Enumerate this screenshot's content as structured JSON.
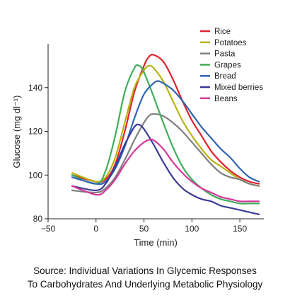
{
  "chart_data": {
    "type": "line",
    "xlabel": "Time (min)",
    "ylabel": "Glucose (mg dl⁻¹)",
    "xlim": [
      -50,
      175
    ],
    "ylim": [
      80,
      160
    ],
    "xticks": [
      -50,
      0,
      50,
      100,
      150
    ],
    "yticks": [
      80,
      100,
      120,
      140
    ],
    "grid": false,
    "legend_position": "top-right",
    "series": [
      {
        "name": "Rice",
        "color": "#e0242d",
        "x": [
          -25,
          0,
          10,
          20,
          30,
          40,
          50,
          55,
          60,
          70,
          80,
          90,
          100,
          110,
          120,
          130,
          140,
          150,
          160,
          170
        ],
        "y": [
          100,
          97,
          98,
          105,
          120,
          138,
          150,
          154,
          155,
          152,
          144,
          134,
          125,
          118,
          111,
          106,
          102,
          99,
          97,
          96
        ]
      },
      {
        "name": "Potatoes",
        "color": "#b5b414",
        "x": [
          -25,
          0,
          10,
          20,
          30,
          40,
          50,
          55,
          60,
          70,
          80,
          90,
          100,
          110,
          120,
          130,
          140,
          150,
          160,
          170
        ],
        "y": [
          101,
          97,
          99,
          108,
          124,
          140,
          148,
          150,
          149,
          143,
          134,
          125,
          118,
          112,
          107,
          104,
          101,
          98,
          96,
          95
        ]
      },
      {
        "name": "Pasta",
        "color": "#7f7f7f",
        "x": [
          -25,
          0,
          10,
          20,
          30,
          40,
          50,
          55,
          60,
          70,
          80,
          90,
          100,
          110,
          120,
          130,
          140,
          150,
          160,
          170
        ],
        "y": [
          93,
          92,
          94,
          99,
          107,
          116,
          124,
          127,
          128,
          127,
          124,
          120,
          115,
          110,
          105,
          101,
          99,
          98,
          96,
          95
        ]
      },
      {
        "name": "Grapes",
        "color": "#3fae5b",
        "x": [
          -25,
          0,
          10,
          20,
          30,
          40,
          45,
          50,
          60,
          70,
          80,
          90,
          100,
          110,
          120,
          130,
          140,
          150,
          160,
          170
        ],
        "y": [
          100,
          96,
          102,
          118,
          138,
          149,
          150,
          147,
          136,
          124,
          113,
          104,
          98,
          94,
          91,
          89,
          88,
          87,
          87,
          87
        ]
      },
      {
        "name": "Bread",
        "color": "#3064b3",
        "x": [
          -25,
          0,
          10,
          20,
          30,
          40,
          50,
          60,
          65,
          70,
          80,
          90,
          100,
          110,
          120,
          130,
          140,
          150,
          160,
          170
        ],
        "y": [
          99,
          96,
          97,
          103,
          113,
          126,
          137,
          142,
          143,
          142,
          139,
          134,
          128,
          122,
          117,
          112,
          108,
          103,
          99,
          97
        ]
      },
      {
        "name": "Mixed berries",
        "color": "#3a3a98",
        "x": [
          -25,
          0,
          10,
          20,
          30,
          40,
          45,
          50,
          60,
          70,
          80,
          90,
          100,
          110,
          120,
          130,
          140,
          150,
          160,
          170
        ],
        "y": [
          95,
          93,
          96,
          104,
          114,
          122,
          123,
          121,
          114,
          106,
          99,
          94,
          91,
          89,
          88,
          86,
          85,
          84,
          83,
          82
        ]
      },
      {
        "name": "Beans",
        "color": "#d6379a",
        "x": [
          -25,
          0,
          10,
          20,
          30,
          40,
          50,
          55,
          60,
          70,
          80,
          90,
          100,
          110,
          120,
          130,
          140,
          150,
          160,
          170
        ],
        "y": [
          95,
          91,
          93,
          98,
          105,
          111,
          115,
          116,
          116,
          112,
          106,
          101,
          97,
          94,
          92,
          90,
          89,
          88,
          88,
          88
        ]
      }
    ]
  },
  "source": {
    "line1": "Source: Individual Variations In Glycemic Responses",
    "line2": "To Carbohydrates And Underlying Metabolic Physiology"
  }
}
